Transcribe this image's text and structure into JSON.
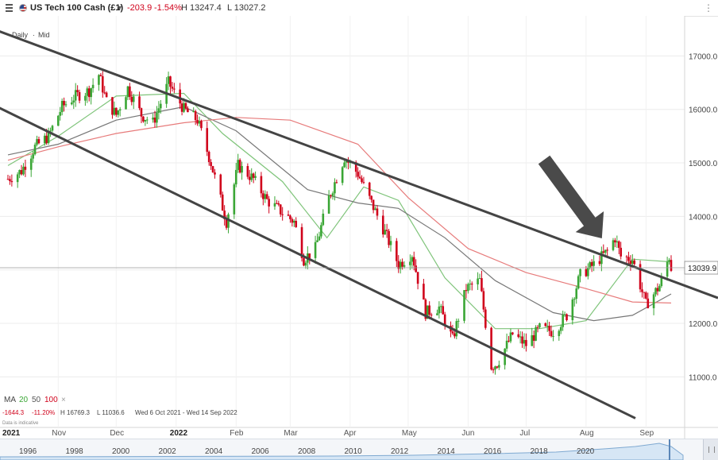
{
  "header": {
    "instrument": "US Tech 100 Cash (£1)",
    "change": "-203.9",
    "change_pct": "-1.54%",
    "high": "H 13247.4",
    "low": "L 13027.2",
    "down_color": "#d0021b"
  },
  "chart_meta": {
    "interval": "Daily",
    "separator": "·",
    "price_type": "Mid",
    "legend_ma_label": "MA",
    "ma_periods": [
      "20",
      "50",
      "100"
    ],
    "legend_close": "×",
    "stats_change": "-1644.3",
    "stats_pct": "-11.20%",
    "stats_high": "H 16769.3",
    "stats_low": "L 11036.6",
    "stats_range": "Wed 6 Oct 2021 - Wed 14 Sep 2022",
    "disclaimer": "Data is indicative",
    "last_price": "13039.9"
  },
  "navigator": {
    "years": [
      "1996",
      "1998",
      "2000",
      "2002",
      "2004",
      "2006",
      "2008",
      "2010",
      "2012",
      "2014",
      "2016",
      "2018",
      "2020"
    ]
  },
  "chart_data": {
    "type": "candlestick",
    "title": "US Tech 100 Cash (£1)",
    "x_start": "2021-10-06",
    "x_end": "2022-09-14",
    "x_ticks": [
      {
        "label": "2021",
        "date": "2021-10-06"
      },
      {
        "label": "Nov",
        "date": "2021-11-01"
      },
      {
        "label": "Dec",
        "date": "2021-12-01"
      },
      {
        "label": "2022",
        "date": "2022-01-01"
      },
      {
        "label": "Feb",
        "date": "2022-02-01"
      },
      {
        "label": "Mar",
        "date": "2022-03-01"
      },
      {
        "label": "Apr",
        "date": "2022-04-01"
      },
      {
        "label": "May",
        "date": "2022-05-01"
      },
      {
        "label": "Jun",
        "date": "2022-06-01"
      },
      {
        "label": "Jul",
        "date": "2022-07-01"
      },
      {
        "label": "Aug",
        "date": "2022-08-01"
      },
      {
        "label": "Sep",
        "date": "2022-09-01"
      }
    ],
    "y_ticks": [
      "17000.0",
      "16000.0",
      "15000.0",
      "14000.0",
      "13000.0",
      "12000.0",
      "11000.0"
    ],
    "ylim": [
      10500,
      17600
    ],
    "up_color": "#3aa635",
    "down_color": "#d0021b",
    "series_closes": [
      {
        "date": "2021-10-06",
        "close": 14700
      },
      {
        "date": "2021-10-13",
        "close": 14850
      },
      {
        "date": "2021-10-20",
        "close": 15300
      },
      {
        "date": "2021-10-27",
        "close": 15500
      },
      {
        "date": "2021-11-03",
        "close": 16050
      },
      {
        "date": "2021-11-10",
        "close": 16250
      },
      {
        "date": "2021-11-17",
        "close": 16350
      },
      {
        "date": "2021-11-22",
        "close": 16650
      },
      {
        "date": "2021-11-26",
        "close": 16150
      },
      {
        "date": "2021-12-01",
        "close": 15900
      },
      {
        "date": "2021-12-07",
        "close": 16400
      },
      {
        "date": "2021-12-14",
        "close": 15900
      },
      {
        "date": "2021-12-20",
        "close": 15750
      },
      {
        "date": "2021-12-28",
        "close": 16500
      },
      {
        "date": "2022-01-05",
        "close": 16000
      },
      {
        "date": "2022-01-12",
        "close": 15800
      },
      {
        "date": "2022-01-19",
        "close": 15000
      },
      {
        "date": "2022-01-27",
        "close": 13900
      },
      {
        "date": "2022-02-02",
        "close": 14950
      },
      {
        "date": "2022-02-10",
        "close": 14700
      },
      {
        "date": "2022-02-17",
        "close": 14300
      },
      {
        "date": "2022-02-24",
        "close": 14100
      },
      {
        "date": "2022-03-03",
        "close": 13900
      },
      {
        "date": "2022-03-08",
        "close": 13200
      },
      {
        "date": "2022-03-14",
        "close": 13400
      },
      {
        "date": "2022-03-21",
        "close": 14350
      },
      {
        "date": "2022-03-29",
        "close": 15100
      },
      {
        "date": "2022-04-05",
        "close": 14800
      },
      {
        "date": "2022-04-12",
        "close": 14250
      },
      {
        "date": "2022-04-19",
        "close": 13700
      },
      {
        "date": "2022-04-26",
        "close": 13100
      },
      {
        "date": "2022-05-03",
        "close": 13300
      },
      {
        "date": "2022-05-10",
        "close": 12200
      },
      {
        "date": "2022-05-17",
        "close": 12300
      },
      {
        "date": "2022-05-24",
        "close": 11700
      },
      {
        "date": "2022-05-31",
        "close": 12650
      },
      {
        "date": "2022-06-07",
        "close": 12800
      },
      {
        "date": "2022-06-13",
        "close": 11200
      },
      {
        "date": "2022-06-16",
        "close": 11250
      },
      {
        "date": "2022-06-24",
        "close": 11800
      },
      {
        "date": "2022-07-01",
        "close": 11600
      },
      {
        "date": "2022-07-08",
        "close": 11900
      },
      {
        "date": "2022-07-15",
        "close": 11850
      },
      {
        "date": "2022-07-22",
        "close": 12150
      },
      {
        "date": "2022-07-29",
        "close": 12900
      },
      {
        "date": "2022-08-05",
        "close": 13100
      },
      {
        "date": "2022-08-12",
        "close": 13350
      },
      {
        "date": "2022-08-16",
        "close": 13600
      },
      {
        "date": "2022-08-19",
        "close": 13250
      },
      {
        "date": "2022-08-25",
        "close": 13200
      },
      {
        "date": "2022-09-01",
        "close": 12350
      },
      {
        "date": "2022-09-08",
        "close": 12700
      },
      {
        "date": "2022-09-13",
        "close": 13250
      },
      {
        "date": "2022-09-14",
        "close": 13040
      }
    ],
    "moving_averages": [
      {
        "name": "20",
        "color": "#7fc47a",
        "points": [
          [
            "2021-10-06",
            14950
          ],
          [
            "2021-11-01",
            15500
          ],
          [
            "2021-12-01",
            16250
          ],
          [
            "2022-01-05",
            16300
          ],
          [
            "2022-01-25",
            15550
          ],
          [
            "2022-02-25",
            14650
          ],
          [
            "2022-03-20",
            13600
          ],
          [
            "2022-04-08",
            14550
          ],
          [
            "2022-04-26",
            14300
          ],
          [
            "2022-05-20",
            12850
          ],
          [
            "2022-06-15",
            11900
          ],
          [
            "2022-07-08",
            11900
          ],
          [
            "2022-08-01",
            12050
          ],
          [
            "2022-08-25",
            13200
          ],
          [
            "2022-09-14",
            13150
          ]
        ]
      },
      {
        "name": "50",
        "color": "#777777",
        "points": [
          [
            "2021-10-06",
            15150
          ],
          [
            "2021-11-01",
            15350
          ],
          [
            "2021-12-01",
            15800
          ],
          [
            "2022-01-05",
            16050
          ],
          [
            "2022-02-01",
            15600
          ],
          [
            "2022-03-10",
            14500
          ],
          [
            "2022-04-05",
            14250
          ],
          [
            "2022-04-26",
            14150
          ],
          [
            "2022-05-20",
            13600
          ],
          [
            "2022-06-15",
            12800
          ],
          [
            "2022-07-15",
            12200
          ],
          [
            "2022-08-05",
            12050
          ],
          [
            "2022-08-25",
            12150
          ],
          [
            "2022-09-14",
            12550
          ]
        ]
      },
      {
        "name": "100",
        "color": "#e77b7b",
        "points": [
          [
            "2021-10-06",
            15050
          ],
          [
            "2021-11-01",
            15300
          ],
          [
            "2021-12-01",
            15550
          ],
          [
            "2022-01-05",
            15750
          ],
          [
            "2022-02-01",
            15850
          ],
          [
            "2022-03-01",
            15800
          ],
          [
            "2022-04-05",
            15350
          ],
          [
            "2022-05-01",
            14350
          ],
          [
            "2022-06-01",
            13400
          ],
          [
            "2022-07-01",
            12950
          ],
          [
            "2022-08-01",
            12650
          ],
          [
            "2022-08-25",
            12400
          ],
          [
            "2022-09-14",
            12380
          ]
        ]
      }
    ],
    "channel_lines": [
      {
        "from": [
          "2021-10-06",
          17400
        ],
        "to": [
          "2022-09-14",
          12800
        ]
      },
      {
        "from": [
          "2021-10-06",
          15950
        ],
        "to": [
          "2022-09-14",
          9900
        ]
      }
    ],
    "arrow_annotation": {
      "from": [
        "2022-07-30",
        13900
      ],
      "to": [
        "2022-08-10",
        13500
      ]
    }
  }
}
